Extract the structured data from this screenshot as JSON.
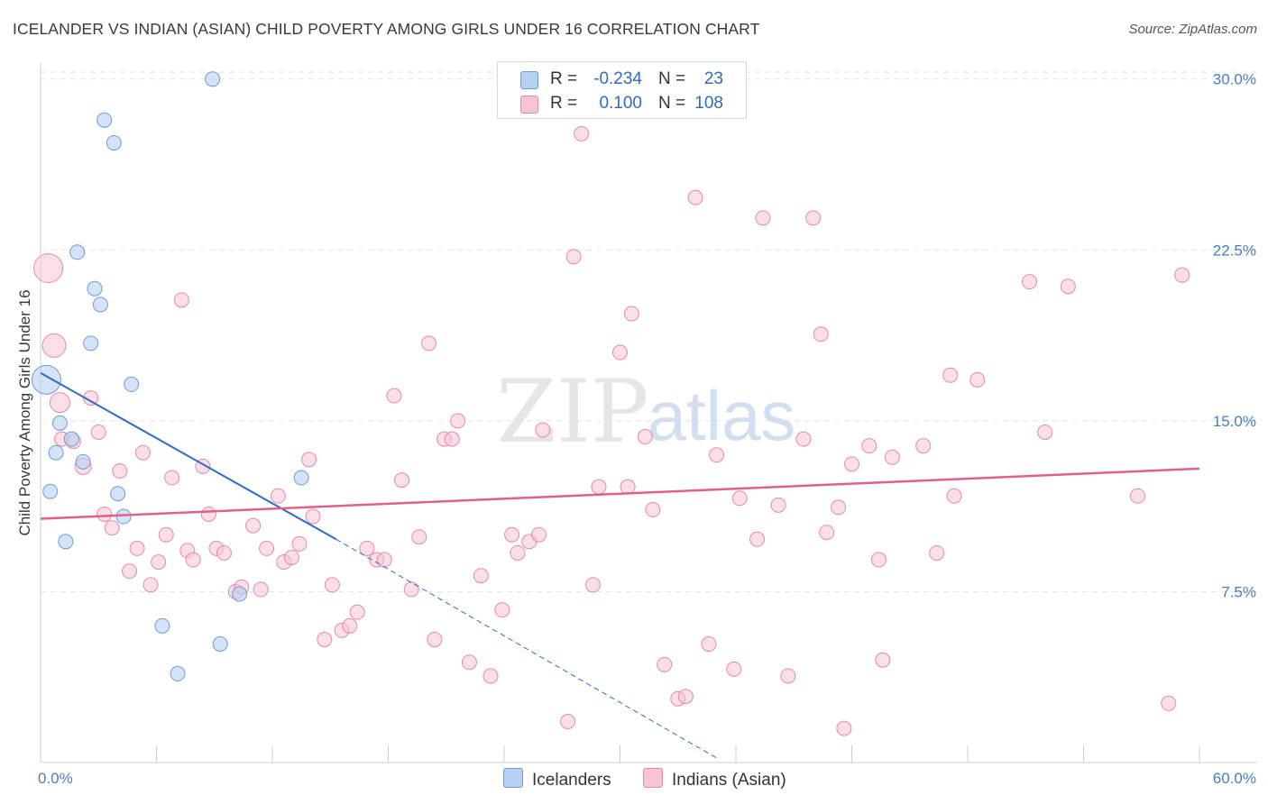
{
  "title": "ICELANDER VS INDIAN (ASIAN) CHILD POVERTY AMONG GIRLS UNDER 16 CORRELATION CHART",
  "source": "Source: ZipAtlas.com",
  "watermark": {
    "zip": "ZIP",
    "atlas": "atlas"
  },
  "legend": {
    "rows": [
      {
        "r_label": "R =",
        "r_value": "-0.234",
        "n_label": "N =",
        "n_value": "23"
      },
      {
        "r_label": "R =",
        "r_value": "0.100",
        "n_label": "N =",
        "n_value": "108"
      }
    ]
  },
  "colors": {
    "icelanders_fill": "#b8d0f2",
    "icelanders_stroke": "#6f9bd8",
    "icelanders_line": "#2f6bc9",
    "indians_fill": "#f7c4d4",
    "indians_stroke": "#e48aa8",
    "indians_line": "#e0608a",
    "grid": "#e2e2e2",
    "axis_text": "#4a7cc4"
  },
  "chart_data": {
    "type": "scatter",
    "title": "ICELANDER VS INDIAN (ASIAN) CHILD POVERTY AMONG GIRLS UNDER 16 CORRELATION CHART",
    "xlabel": "",
    "ylabel": "Child Poverty Among Girls Under 16",
    "xlim": [
      0,
      60
    ],
    "ylim": [
      0,
      30.7
    ],
    "x_tick_labels": [
      "0.0%",
      "60.0%"
    ],
    "y_ticks": [
      7.5,
      15.0,
      22.5,
      30.0
    ],
    "y_tick_labels": [
      "7.5%",
      "15.0%",
      "22.5%",
      "30.0%"
    ],
    "grid": "horizontal dashed",
    "legend_position": "top-center and bottom",
    "series": [
      {
        "name": "Icelanders",
        "R": -0.234,
        "N": 23,
        "trend": {
          "x0": 0,
          "y0": 17.1,
          "x1": 15.3,
          "y1": 9.8,
          "dash_to_x": 35,
          "dash_to_y": 0.2
        },
        "points": [
          [
            0.3,
            16.8,
            16
          ],
          [
            8.9,
            30.0,
            8
          ],
          [
            3.3,
            28.2,
            8
          ],
          [
            3.8,
            27.2,
            8
          ],
          [
            1.9,
            22.4,
            8
          ],
          [
            2.8,
            20.8,
            8
          ],
          [
            3.1,
            20.1,
            8
          ],
          [
            2.6,
            18.4,
            8
          ],
          [
            4.7,
            16.6,
            8
          ],
          [
            1.0,
            14.9,
            8
          ],
          [
            1.6,
            14.2,
            8
          ],
          [
            0.8,
            13.6,
            8
          ],
          [
            2.2,
            13.2,
            8
          ],
          [
            0.5,
            11.9,
            8
          ],
          [
            4.0,
            11.8,
            8
          ],
          [
            13.5,
            12.5,
            8
          ],
          [
            4.3,
            10.8,
            8
          ],
          [
            1.3,
            9.7,
            8
          ],
          [
            10.3,
            7.4,
            8
          ],
          [
            6.3,
            6.0,
            8
          ],
          [
            9.3,
            5.2,
            8
          ],
          [
            7.1,
            3.9,
            8
          ]
        ]
      },
      {
        "name": "Indians (Asian)",
        "R": 0.1,
        "N": 108,
        "trend": {
          "x0": 0,
          "y0": 10.7,
          "x1": 60,
          "y1": 12.9
        },
        "points": [
          [
            0.4,
            21.7,
            16
          ],
          [
            0.7,
            18.3,
            13
          ],
          [
            1.0,
            15.8,
            11
          ],
          [
            1.1,
            14.2,
            8
          ],
          [
            1.7,
            14.1,
            8
          ],
          [
            2.2,
            13.0,
            9
          ],
          [
            2.6,
            16.0,
            8
          ],
          [
            3.0,
            14.5,
            8
          ],
          [
            3.3,
            10.9,
            8
          ],
          [
            3.7,
            10.3,
            8
          ],
          [
            4.1,
            12.8,
            8
          ],
          [
            4.6,
            8.4,
            8
          ],
          [
            5.0,
            9.4,
            8
          ],
          [
            5.3,
            13.6,
            8
          ],
          [
            5.7,
            7.8,
            8
          ],
          [
            6.1,
            8.8,
            8
          ],
          [
            6.5,
            10.0,
            8
          ],
          [
            6.8,
            12.5,
            8
          ],
          [
            7.3,
            20.3,
            8
          ],
          [
            7.6,
            9.3,
            8
          ],
          [
            7.9,
            8.9,
            8
          ],
          [
            8.4,
            13.0,
            8
          ],
          [
            8.7,
            10.9,
            8
          ],
          [
            9.1,
            9.4,
            8
          ],
          [
            9.5,
            9.2,
            8
          ],
          [
            10.1,
            7.5,
            8
          ],
          [
            10.4,
            7.7,
            8
          ],
          [
            11.0,
            10.4,
            8
          ],
          [
            11.4,
            7.6,
            8
          ],
          [
            11.7,
            9.4,
            8
          ],
          [
            12.3,
            11.7,
            8
          ],
          [
            12.6,
            8.8,
            8
          ],
          [
            13.0,
            9.0,
            8
          ],
          [
            13.4,
            9.6,
            8
          ],
          [
            13.9,
            13.3,
            8
          ],
          [
            14.1,
            10.8,
            8
          ],
          [
            14.7,
            5.4,
            8
          ],
          [
            15.1,
            7.8,
            8
          ],
          [
            15.6,
            5.8,
            8
          ],
          [
            16.0,
            6.0,
            8
          ],
          [
            16.4,
            6.6,
            8
          ],
          [
            16.9,
            9.4,
            8
          ],
          [
            17.4,
            8.9,
            8
          ],
          [
            17.8,
            8.9,
            8
          ],
          [
            18.3,
            16.1,
            8
          ],
          [
            18.7,
            12.4,
            8
          ],
          [
            19.2,
            7.6,
            8
          ],
          [
            19.6,
            9.9,
            8
          ],
          [
            20.1,
            18.4,
            8
          ],
          [
            20.4,
            5.4,
            8
          ],
          [
            20.9,
            14.2,
            8
          ],
          [
            21.3,
            14.2,
            8
          ],
          [
            21.6,
            15.0,
            8
          ],
          [
            22.2,
            4.4,
            8
          ],
          [
            22.8,
            8.2,
            8
          ],
          [
            23.3,
            3.8,
            8
          ],
          [
            23.9,
            6.7,
            8
          ],
          [
            24.4,
            10.0,
            8
          ],
          [
            24.7,
            9.2,
            8
          ],
          [
            25.3,
            9.7,
            8
          ],
          [
            25.8,
            10.0,
            8
          ],
          [
            26.0,
            14.6,
            8
          ],
          [
            27.3,
            1.8,
            8
          ],
          [
            27.6,
            22.2,
            8
          ],
          [
            28.0,
            27.6,
            8
          ],
          [
            28.6,
            7.8,
            8
          ],
          [
            28.9,
            12.1,
            8
          ],
          [
            30.0,
            18.0,
            8
          ],
          [
            30.4,
            12.1,
            8
          ],
          [
            30.6,
            19.7,
            8
          ],
          [
            31.3,
            14.3,
            8
          ],
          [
            31.7,
            11.1,
            8
          ],
          [
            32.3,
            4.3,
            8
          ],
          [
            33.0,
            2.8,
            8
          ],
          [
            33.4,
            2.9,
            8
          ],
          [
            33.9,
            24.8,
            8
          ],
          [
            34.6,
            5.2,
            8
          ],
          [
            35.0,
            13.5,
            8
          ],
          [
            35.9,
            4.1,
            8
          ],
          [
            36.2,
            11.6,
            8
          ],
          [
            37.1,
            9.8,
            8
          ],
          [
            37.4,
            23.9,
            8
          ],
          [
            38.2,
            11.3,
            8
          ],
          [
            38.7,
            3.8,
            8
          ],
          [
            39.5,
            14.2,
            8
          ],
          [
            40.0,
            23.9,
            8
          ],
          [
            40.4,
            18.8,
            8
          ],
          [
            40.7,
            10.1,
            8
          ],
          [
            41.3,
            11.2,
            8
          ],
          [
            41.6,
            1.5,
            8
          ],
          [
            42.0,
            13.1,
            8
          ],
          [
            42.9,
            13.9,
            8
          ],
          [
            43.4,
            8.9,
            8
          ],
          [
            43.6,
            4.5,
            8
          ],
          [
            44.1,
            13.4,
            8
          ],
          [
            45.7,
            13.9,
            8
          ],
          [
            46.4,
            9.2,
            8
          ],
          [
            47.1,
            17.0,
            8
          ],
          [
            47.3,
            11.7,
            8
          ],
          [
            48.5,
            16.8,
            8
          ],
          [
            51.2,
            21.1,
            8
          ],
          [
            52.0,
            14.5,
            8
          ],
          [
            53.2,
            20.9,
            8
          ],
          [
            56.8,
            11.7,
            8
          ],
          [
            58.4,
            2.6,
            8
          ],
          [
            59.1,
            21.4,
            8
          ]
        ]
      }
    ]
  }
}
